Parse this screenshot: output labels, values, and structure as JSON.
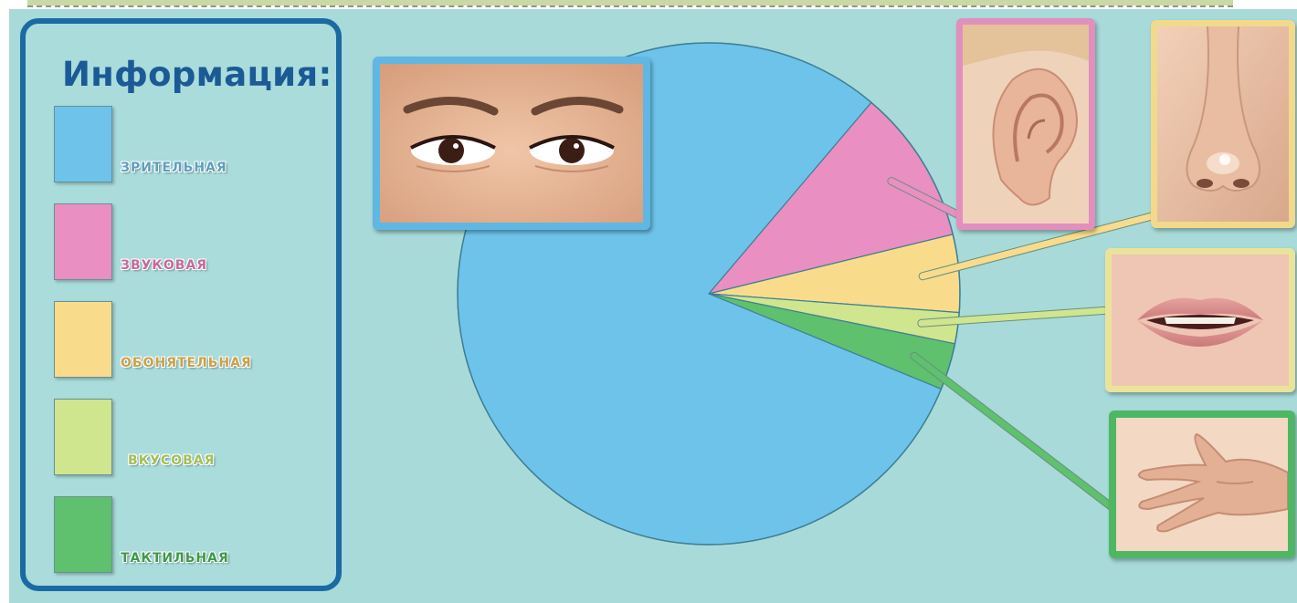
{
  "legend": {
    "title": "Информация:",
    "items": [
      {
        "label": "ЗРИТЕЛЬНАЯ",
        "color": "#6ec3ea",
        "label_color": "#5e9fbe"
      },
      {
        "label": "ЗВУКОВАЯ",
        "color": "#e98fc2",
        "label_color": "#c76a9c"
      },
      {
        "label": "ОБОНЯТЕЛЬНАЯ",
        "color": "#f8dc8c",
        "label_color": "#c8a24a"
      },
      {
        "label": "ВКУСОВАЯ",
        "color": "#cfe58e",
        "label_color": "#a3bf58"
      },
      {
        "label": "ТАКТИЛЬНАЯ",
        "color": "#5fc06e",
        "label_color": "#3d9a4a"
      }
    ]
  },
  "chart_data": {
    "type": "pie",
    "categories": [
      "ЗРИТЕЛЬНАЯ",
      "ЗВУКОВАЯ",
      "ОБОНЯТЕЛЬНАЯ",
      "ВКУСОВАЯ",
      "ТАКТИЛЬНАЯ"
    ],
    "values": [
      80,
      10,
      5,
      2,
      3
    ],
    "colors": [
      "#6ec3ea",
      "#e98fc2",
      "#f8dc8c",
      "#cfe58e",
      "#5fc06e"
    ],
    "legend_position": "left",
    "title": ""
  },
  "pictures": [
    {
      "name": "eyes",
      "frame_color": "#5fb7e3"
    },
    {
      "name": "ear",
      "frame_color": "#e28fbe"
    },
    {
      "name": "nose",
      "frame_color": "#f3d98a"
    },
    {
      "name": "mouth",
      "frame_color": "#e9e49a"
    },
    {
      "name": "hand",
      "frame_color": "#4fb763"
    }
  ]
}
